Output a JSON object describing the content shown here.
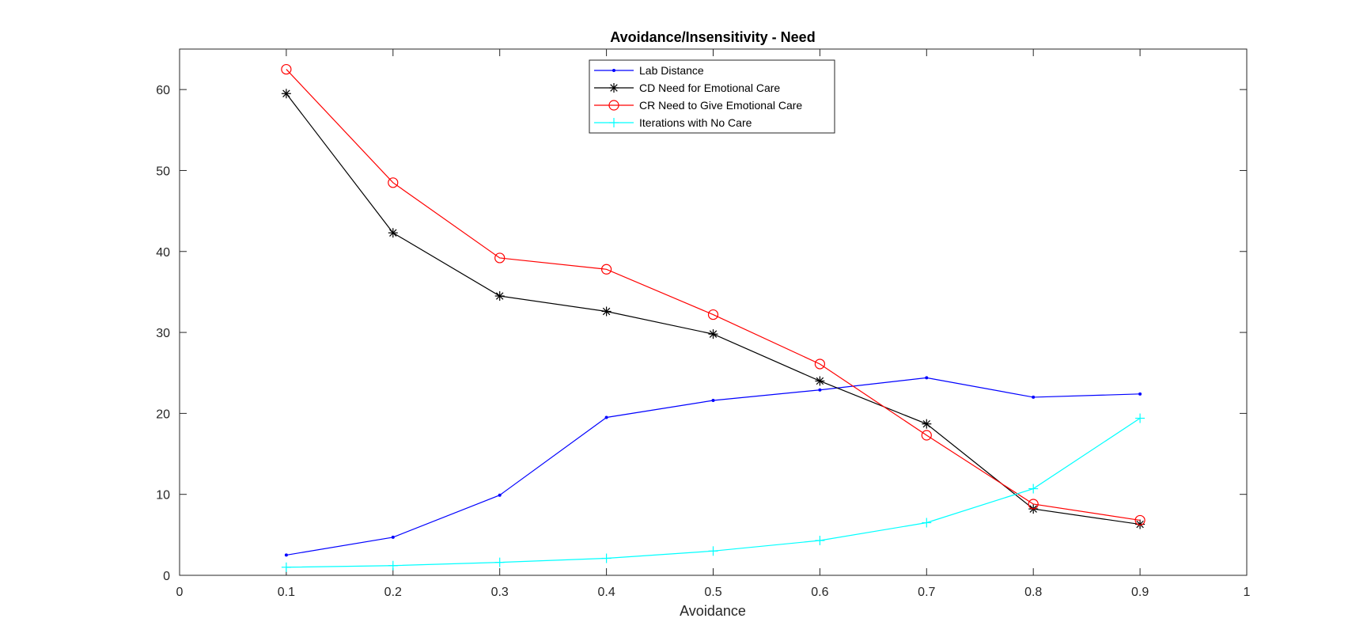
{
  "chart_data": {
    "type": "line",
    "title": "Avoidance/Insensitivity - Need",
    "xlabel": "Avoidance",
    "ylabel": "",
    "xlim": [
      0,
      1
    ],
    "ylim": [
      0,
      65
    ],
    "xticks": [
      "0",
      "0.1",
      "0.2",
      "0.3",
      "0.4",
      "0.5",
      "0.6",
      "0.7",
      "0.8",
      "0.9",
      "1"
    ],
    "xtick_values": [
      0,
      0.1,
      0.2,
      0.3,
      0.4,
      0.5,
      0.6,
      0.7,
      0.8,
      0.9,
      1
    ],
    "yticks": [
      "0",
      "10",
      "20",
      "30",
      "40",
      "50",
      "60"
    ],
    "ytick_values": [
      0,
      10,
      20,
      30,
      40,
      50,
      60
    ],
    "grid": false,
    "legend_position": "top-center",
    "x": [
      0.1,
      0.2,
      0.3,
      0.4,
      0.5,
      0.6,
      0.7,
      0.8,
      0.9
    ],
    "series": [
      {
        "name": "Lab Distance",
        "color": "#0000ff",
        "marker": "dot",
        "values": [
          2.5,
          4.7,
          9.9,
          19.5,
          21.6,
          22.9,
          24.4,
          22.0,
          22.4
        ]
      },
      {
        "name": "CD Need for Emotional Care",
        "color": "#000000",
        "marker": "asterisk",
        "values": [
          59.5,
          42.3,
          34.5,
          32.6,
          29.8,
          24.0,
          18.7,
          8.2,
          6.3
        ]
      },
      {
        "name": "CR Need to Give Emotional Care",
        "color": "#ff0000",
        "marker": "circle",
        "values": [
          62.5,
          48.5,
          39.2,
          37.8,
          32.2,
          26.1,
          17.3,
          8.8,
          6.8
        ]
      },
      {
        "name": "Iterations with No Care",
        "color": "#00ffff",
        "marker": "plus",
        "values": [
          1.0,
          1.2,
          1.6,
          2.1,
          3.0,
          4.3,
          6.5,
          10.7,
          19.4
        ]
      }
    ]
  }
}
